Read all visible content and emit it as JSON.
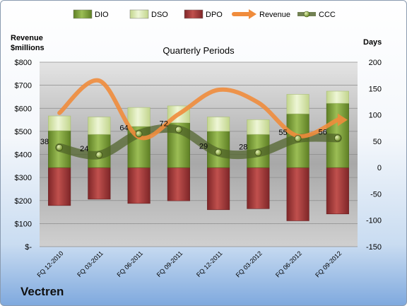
{
  "company": "Vectren",
  "chart_data": {
    "type": "bar",
    "title": "Quarterly Periods",
    "y_left_label": [
      "Revenue",
      "$millions"
    ],
    "y_right_label": "Days",
    "categories": [
      "FQ 12-2010",
      "FQ 03-2011",
      "FQ 06-2011",
      "FQ 09-2011",
      "FQ 12-2011",
      "FQ 03-2012",
      "FQ 06-2012",
      "FQ 09-2012"
    ],
    "y_left_ticks": [
      "$-",
      "$100",
      "$200",
      "$300",
      "$400",
      "$500",
      "$600",
      "$700",
      "$800"
    ],
    "y_left_range": [
      0,
      800
    ],
    "y_right_ticks": [
      "-150",
      "-100",
      "-50",
      "0",
      "50",
      "100",
      "150",
      "200"
    ],
    "y_right_range": [
      -150,
      200
    ],
    "legend": [
      "DIO",
      "DSO",
      "DPO",
      "Revenue",
      "CCC"
    ],
    "series": [
      {
        "name": "DIO",
        "axis": "right",
        "values": [
          70,
          63,
          78,
          85,
          69,
          63,
          102,
          122
        ]
      },
      {
        "name": "DSO",
        "axis": "right",
        "values": [
          28,
          33,
          36,
          32,
          27,
          28,
          37,
          23
        ]
      },
      {
        "name": "DPO",
        "axis": "right",
        "values": [
          -72,
          -60,
          -68,
          -63,
          -80,
          -78,
          -101,
          -88
        ]
      },
      {
        "name": "Revenue",
        "axis": "left",
        "values": [
          580,
          720,
          475,
          575,
          680,
          625,
          480,
          550
        ]
      },
      {
        "name": "CCC",
        "axis": "right",
        "values": [
          38,
          24,
          64,
          72,
          29,
          28,
          55,
          56
        ]
      }
    ],
    "data_labels": [
      "38",
      "24",
      "64",
      "72",
      "29",
      "28",
      "55",
      "56"
    ],
    "colors": {
      "DIO": "#7ea33a",
      "DSO": "#d9e8b0",
      "DPO": "#a83a3c",
      "Revenue": "#f08c3c",
      "CCC": "#4f6228"
    },
    "legend_placement": "top",
    "grid": true
  }
}
